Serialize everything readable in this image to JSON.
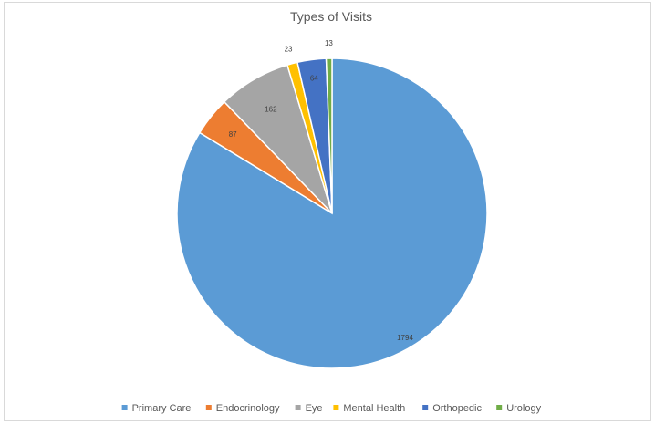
{
  "chart_data": {
    "type": "pie",
    "title": "Types of Visits",
    "categories": [
      "Primary Care",
      "Endocrinology",
      "Eye",
      "Mental Health",
      "Orthopedic",
      "Urology"
    ],
    "values": [
      1794,
      87,
      162,
      23,
      64,
      13
    ],
    "colors": [
      "#5b9bd5",
      "#ed7d31",
      "#a5a5a5",
      "#ffc000",
      "#4472c4",
      "#70ad47"
    ],
    "data_labels": [
      "1794",
      "87",
      "162",
      "23",
      "64",
      "13"
    ],
    "legend_position": "bottom",
    "start_angle": "12 o'clock",
    "direction": "clockwise"
  }
}
